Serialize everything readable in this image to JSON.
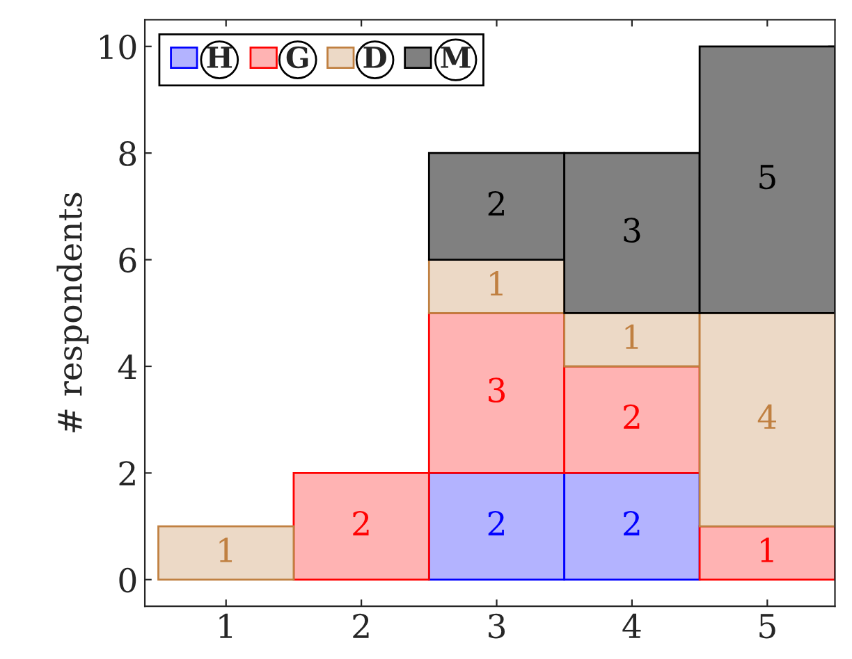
{
  "chart_data": {
    "type": "bar",
    "stacked": true,
    "ylabel": "# respondents",
    "categories": [
      "1",
      "2",
      "3",
      "4",
      "5"
    ],
    "series": [
      {
        "name": "H",
        "color": "#b3b3ff",
        "values": [
          null,
          null,
          2,
          2,
          null
        ]
      },
      {
        "name": "G",
        "color": "#ffb3b3",
        "values": [
          null,
          2,
          3,
          2,
          1
        ]
      },
      {
        "name": "D",
        "color": "#ecd9c6",
        "values": [
          1,
          null,
          1,
          1,
          4
        ]
      },
      {
        "name": "M",
        "color": "#808080",
        "values": [
          null,
          null,
          2,
          3,
          5
        ]
      }
    ],
    "ylim": [
      -0.5,
      10.5
    ],
    "yticks": [
      0,
      2,
      4,
      6,
      8,
      10
    ],
    "data_labels": true,
    "legend": "top left",
    "grid": false
  }
}
